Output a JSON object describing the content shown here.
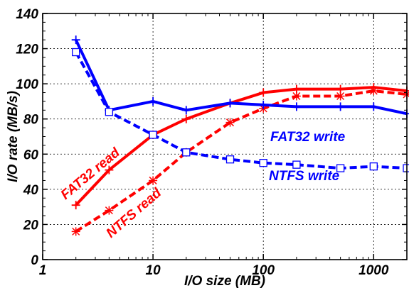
{
  "chart_data": {
    "type": "line",
    "title": "",
    "xlabel": "I/O size (MB)",
    "ylabel": "I/O rate (MB/s)",
    "xscale": "log",
    "xlim": [
      1,
      2000
    ],
    "ylim": [
      0,
      140
    ],
    "grid": true,
    "legend": "none (series labeled inline)",
    "xticks": [
      "1",
      "10",
      "100",
      "1000"
    ],
    "yticks": [
      "0",
      "20",
      "40",
      "60",
      "80",
      "100",
      "120",
      "140"
    ],
    "x": [
      2,
      4,
      10,
      20,
      50,
      100,
      200,
      500,
      1000,
      2000
    ],
    "series": [
      {
        "name": "FAT32 read",
        "color": "#ff0000",
        "line": "solid",
        "marker": "plus",
        "values": [
          31,
          51,
          71,
          80,
          89,
          95,
          97,
          97,
          98,
          96
        ]
      },
      {
        "name": "NTFS read",
        "color": "#ff0000",
        "line": "dashed",
        "marker": "star",
        "values": [
          16,
          28,
          45,
          61,
          78,
          86,
          93,
          93,
          96,
          94
        ]
      },
      {
        "name": "FAT32 write",
        "color": "#0000ff",
        "line": "solid",
        "marker": "plus",
        "values": [
          125,
          85,
          90,
          85,
          89,
          88,
          87,
          87,
          87,
          83
        ]
      },
      {
        "name": "NTFS write",
        "color": "#0000ff",
        "line": "dashed",
        "marker": "square",
        "values": [
          118,
          84,
          71,
          61,
          57,
          55,
          54,
          52,
          53,
          52
        ]
      }
    ]
  }
}
